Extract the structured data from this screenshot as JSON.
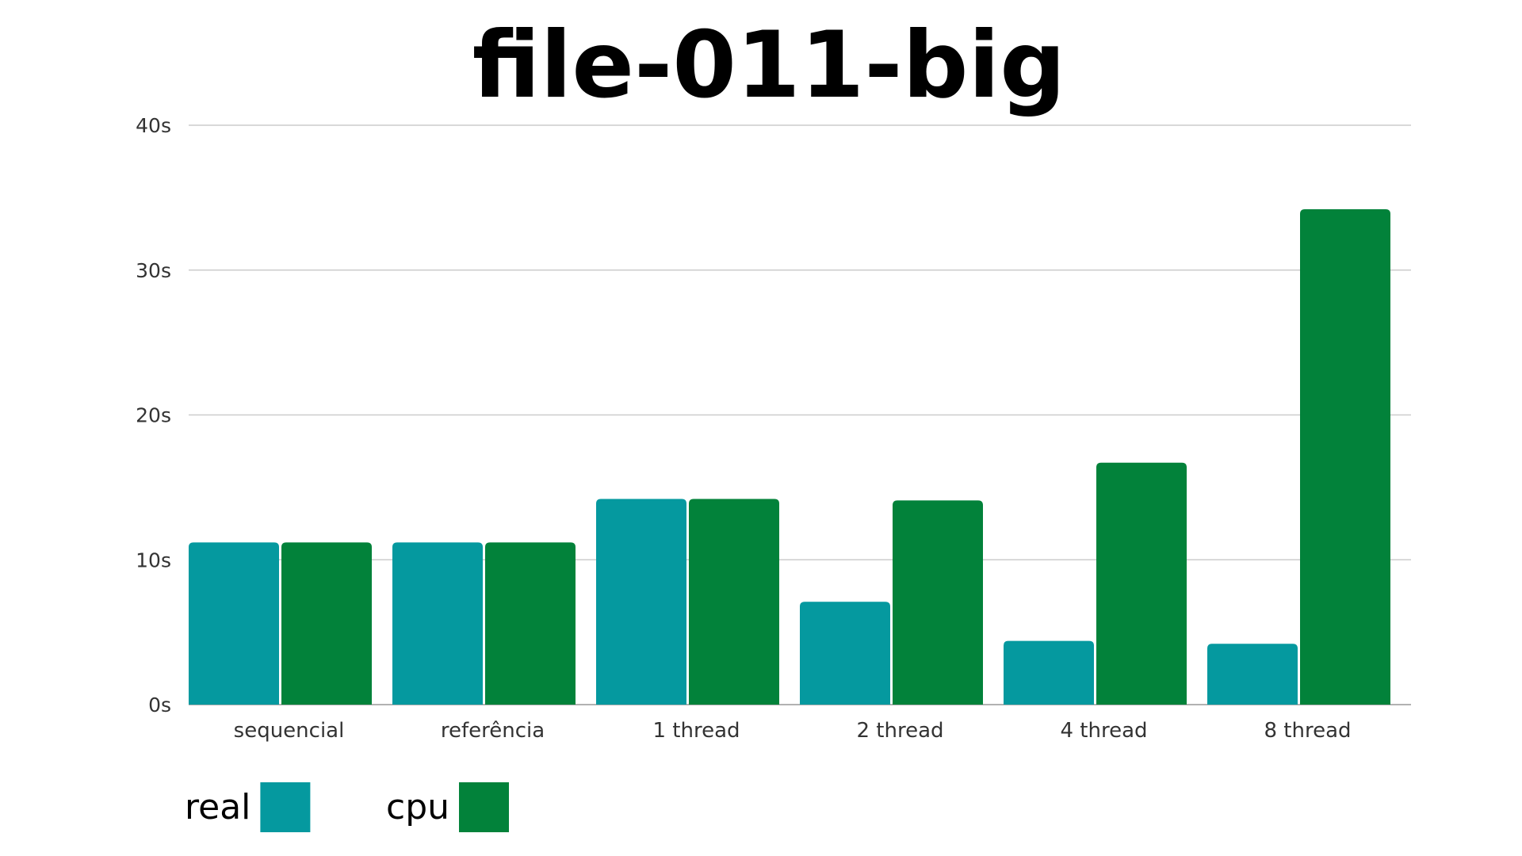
{
  "chart_data": {
    "type": "bar",
    "title": "file-011-big",
    "categories": [
      "sequencial",
      "referência",
      "1 thread",
      "2 thread",
      "4 thread",
      "8 thread"
    ],
    "series": [
      {
        "name": "real",
        "color": "#05999f",
        "values": [
          11.2,
          11.2,
          14.2,
          7.1,
          4.4,
          4.2
        ]
      },
      {
        "name": "cpu",
        "color": "#02823a",
        "values": [
          11.2,
          11.2,
          14.2,
          14.1,
          16.7,
          34.2
        ]
      }
    ],
    "ylim": [
      0,
      40
    ],
    "yticks": [
      {
        "value": 0,
        "label": "0s"
      },
      {
        "value": 10,
        "label": "10s"
      },
      {
        "value": 20,
        "label": "20s"
      },
      {
        "value": 30,
        "label": "30s"
      },
      {
        "value": 40,
        "label": "40s"
      }
    ],
    "grid": true,
    "legend_position": "bottom-left",
    "gridline_color": "#cccccc"
  }
}
